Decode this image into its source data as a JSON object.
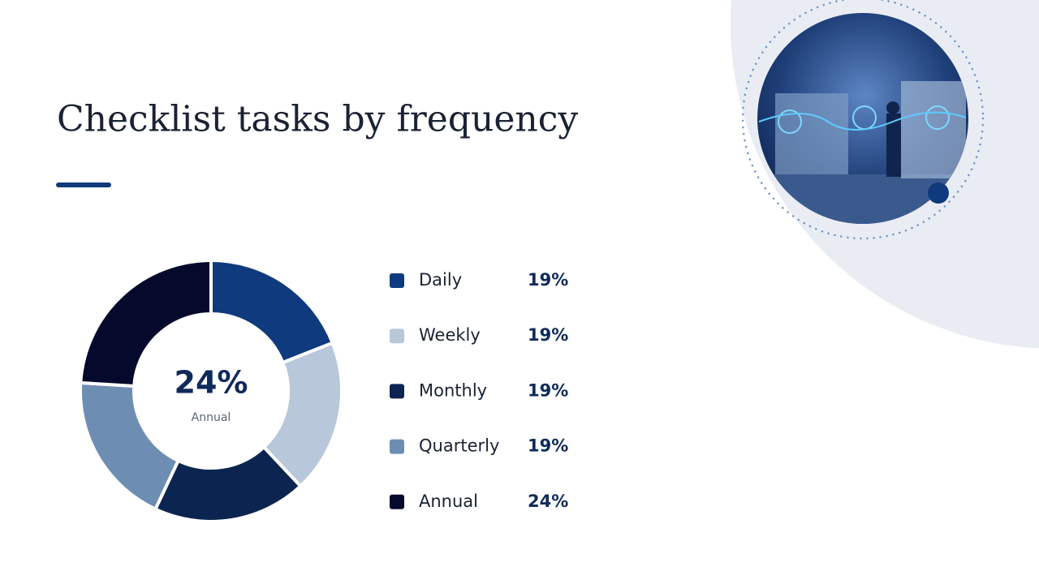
{
  "chart_data": {
    "type": "pie",
    "donut": true,
    "title": "Checklist tasks by frequency",
    "categories": [
      "Daily",
      "Weekly",
      "Monthly",
      "Quarterly",
      "Annual"
    ],
    "values": [
      19,
      19,
      19,
      19,
      24
    ],
    "value_labels": [
      "19%",
      "19%",
      "19%",
      "19%",
      "24%"
    ],
    "colors": [
      "#0f3a7d",
      "#b8c7d9",
      "#0c2550",
      "#6e8db3",
      "#05092c"
    ]
  }
}
